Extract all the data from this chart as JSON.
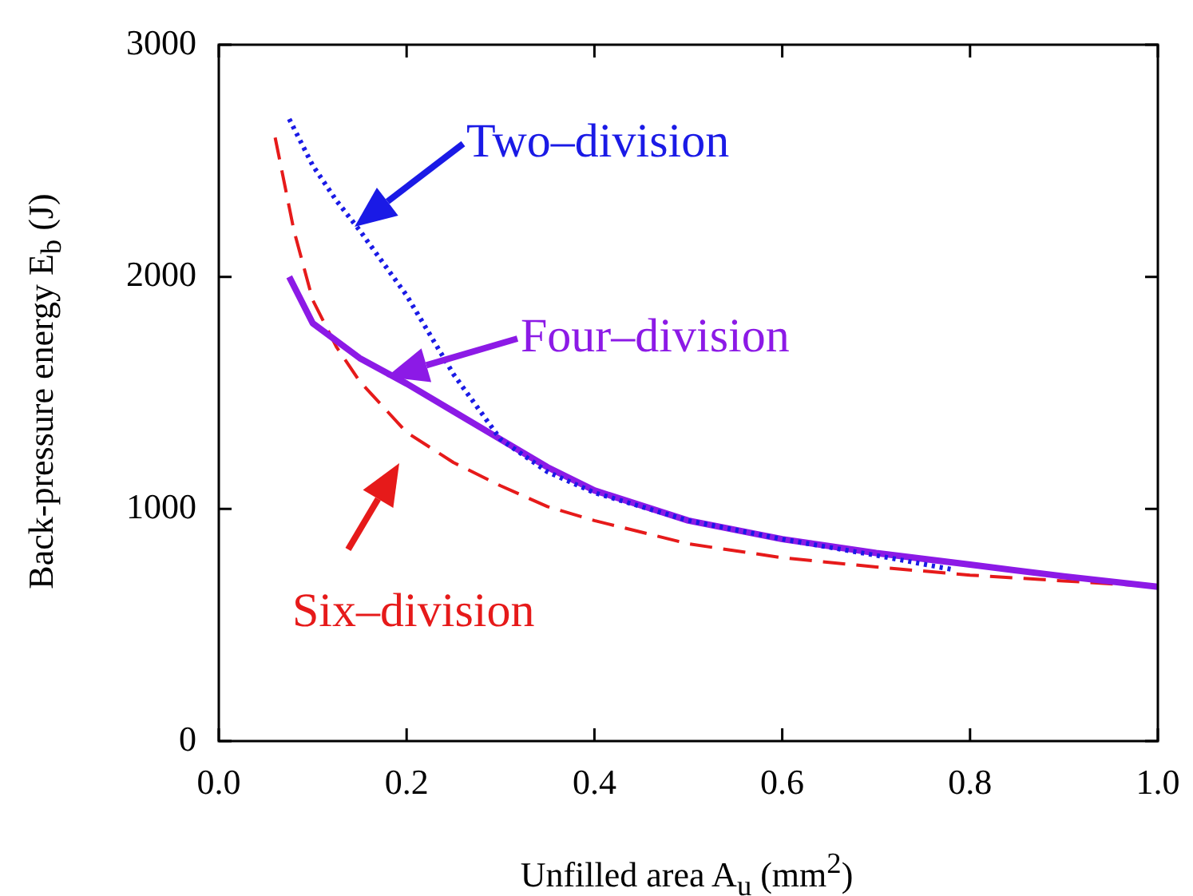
{
  "chart_data": {
    "type": "line",
    "xlabel": "Unfilled area A$_{u}$  (mm$^{2}$)",
    "ylabel": "Back-pressure energy E$_{b}$  (J)",
    "xlim": [
      0,
      1
    ],
    "xticks": [
      {
        "value": 0,
        "label": "0.0"
      },
      0.2,
      0.4,
      0.6,
      0.8,
      {
        "value": 1,
        "label": "1.0"
      }
    ],
    "ylim": [
      0,
      3000
    ],
    "yticks": [
      0,
      1000,
      2000,
      3000
    ],
    "grid": false,
    "legend": "top left",
    "marker": "none",
    "series": [
      {
        "name": "Two–division",
        "color": "#1a1ae6",
        "line_style": "dotted",
        "x": [
          0.075,
          0.1,
          0.125,
          0.15,
          0.2,
          0.25,
          0.3,
          0.35,
          0.4,
          0.5,
          0.6,
          0.7,
          0.78
        ],
        "values": [
          2680,
          2480,
          2330,
          2200,
          1920,
          1580,
          1300,
          1160,
          1070,
          950,
          870,
          800,
          740
        ]
      },
      {
        "name": "Four–division",
        "color": "#8c1ae6",
        "line_style": "solid",
        "x": [
          0.075,
          0.1,
          0.15,
          0.2,
          0.25,
          0.3,
          0.35,
          0.4,
          0.5,
          0.6,
          0.7,
          0.8,
          0.9,
          1.0
        ],
        "values": [
          2000,
          1800,
          1650,
          1540,
          1420,
          1300,
          1180,
          1080,
          950,
          870,
          810,
          760,
          710,
          665
        ]
      },
      {
        "name": "Six–division",
        "color": "#e61a1a",
        "line_style": "dashed",
        "x": [
          0.06,
          0.08,
          0.1,
          0.125,
          0.15,
          0.2,
          0.25,
          0.3,
          0.35,
          0.4,
          0.5,
          0.6,
          0.7,
          0.8,
          0.9,
          1.0
        ],
        "values": [
          2600,
          2200,
          1900,
          1700,
          1550,
          1330,
          1200,
          1100,
          1010,
          950,
          850,
          790,
          750,
          715,
          690,
          665
        ]
      }
    ]
  }
}
